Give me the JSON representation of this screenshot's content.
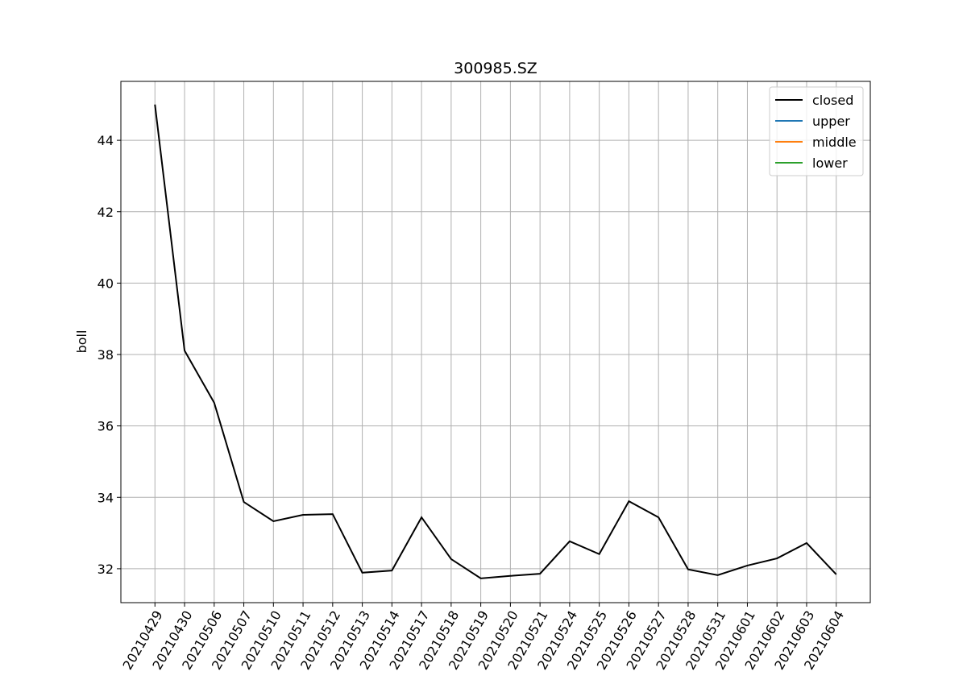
{
  "chart_data": {
    "type": "line",
    "title": "300985.SZ",
    "y_label": "boll",
    "categories": [
      "20210429",
      "20210430",
      "20210506",
      "20210507",
      "20210510",
      "20210511",
      "20210512",
      "20210513",
      "20210514",
      "20210517",
      "20210518",
      "20210519",
      "20210520",
      "20210521",
      "20210524",
      "20210525",
      "20210526",
      "20210527",
      "20210528",
      "20210531",
      "20210601",
      "20210602",
      "20210603",
      "20210604"
    ],
    "series": [
      {
        "name": "closed",
        "color": "#000000",
        "values": [
          45.0,
          38.11,
          36.65,
          33.87,
          33.33,
          33.51,
          33.53,
          31.89,
          31.95,
          33.44,
          32.27,
          31.73,
          31.8,
          31.86,
          32.77,
          32.41,
          33.89,
          33.44,
          31.98,
          31.82,
          32.09,
          32.29,
          32.72,
          31.84
        ]
      },
      {
        "name": "upper",
        "color": "#1f77b4",
        "values": [
          null,
          null,
          null,
          null,
          null,
          null,
          null,
          null,
          null,
          null,
          null,
          null,
          null,
          null,
          null,
          null,
          null,
          null,
          null,
          null,
          null,
          null,
          null,
          null
        ]
      },
      {
        "name": "middle",
        "color": "#ff7f0e",
        "values": [
          null,
          null,
          null,
          null,
          null,
          null,
          null,
          null,
          null,
          null,
          null,
          null,
          null,
          null,
          null,
          null,
          null,
          null,
          null,
          null,
          null,
          null,
          null,
          null
        ]
      },
      {
        "name": "lower",
        "color": "#2ca02c",
        "values": [
          null,
          null,
          null,
          null,
          null,
          null,
          null,
          null,
          null,
          null,
          null,
          null,
          null,
          null,
          null,
          null,
          null,
          null,
          null,
          null,
          null,
          null,
          null,
          null
        ]
      }
    ],
    "ylim": [
      31.05,
      45.65
    ],
    "yticks": [
      32,
      34,
      36,
      38,
      40,
      42,
      44
    ],
    "grid": true,
    "legend": "upper right"
  }
}
